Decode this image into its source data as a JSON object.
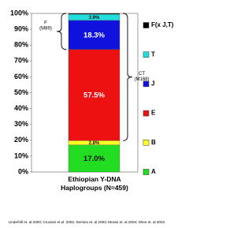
{
  "chart_data": {
    "type": "stacked-bar",
    "categories": [
      "Ethiopian Y-DNA Haplogroups (N=459)"
    ],
    "series": [
      {
        "name": "A",
        "color": "#22dd22",
        "values": [
          17.0
        ],
        "value_labels": [
          "17.0%"
        ]
      },
      {
        "name": "B",
        "color": "#ffff22",
        "values": [
          2.8
        ],
        "value_labels": [
          "2.8%"
        ]
      },
      {
        "name": "E",
        "color": "#ee1111",
        "values": [
          57.5
        ],
        "value_labels": [
          "57.5%"
        ]
      },
      {
        "name": "J",
        "color": "#1111dd",
        "values": [
          18.3
        ],
        "value_labels": [
          "18.3%"
        ]
      },
      {
        "name": "T",
        "color": "#22dddd",
        "values": [
          3.9
        ],
        "value_labels": [
          "3.9%"
        ]
      },
      {
        "name": "F(x J,T)",
        "color": "#000000",
        "values": [
          0.5
        ],
        "value_labels": [
          null
        ]
      }
    ],
    "ylim": [
      0,
      100
    ],
    "yticks": [
      {
        "value": 0,
        "label": "0%"
      },
      {
        "value": 10,
        "label": "10%"
      },
      {
        "value": 20,
        "label": "20%"
      },
      {
        "value": 30,
        "label": "30%"
      },
      {
        "value": 40,
        "label": "40%"
      },
      {
        "value": 50,
        "label": "50%"
      },
      {
        "value": 60,
        "label": "60%"
      },
      {
        "value": 70,
        "label": "70%"
      },
      {
        "value": 80,
        "label": "80%"
      },
      {
        "value": 90,
        "label": "90%"
      },
      {
        "value": 100,
        "label": "100%"
      }
    ],
    "annotations": [
      "F",
      "(M89)",
      "CT",
      "(M168)"
    ],
    "source": "Underhill et. al 2000; Cruciani et al. 2002; Semino et. al 2002; Moran et. al 2004; Shen et. al 2004"
  }
}
